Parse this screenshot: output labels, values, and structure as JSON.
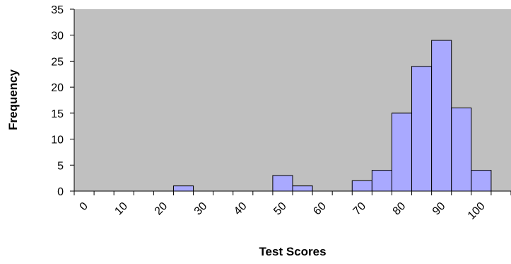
{
  "chart_data": {
    "type": "bar",
    "xlabel": "Test Scores",
    "ylabel": "Frequency",
    "categories": [
      "0",
      null,
      "10",
      null,
      "20",
      null,
      "30",
      null,
      "40",
      null,
      "50",
      null,
      "60",
      null,
      "70",
      null,
      "80",
      null,
      "90",
      null,
      "100",
      null
    ],
    "values": [
      0,
      0,
      0,
      0,
      0,
      1,
      0,
      0,
      0,
      0,
      3,
      1,
      0,
      0,
      2,
      4,
      15,
      24,
      29,
      16,
      4,
      0
    ],
    "color": "#a9a9ff",
    "ylim": [
      0,
      35
    ],
    "yticks": [
      0,
      5,
      10,
      15,
      20,
      25,
      30,
      35
    ],
    "grid": false
  }
}
